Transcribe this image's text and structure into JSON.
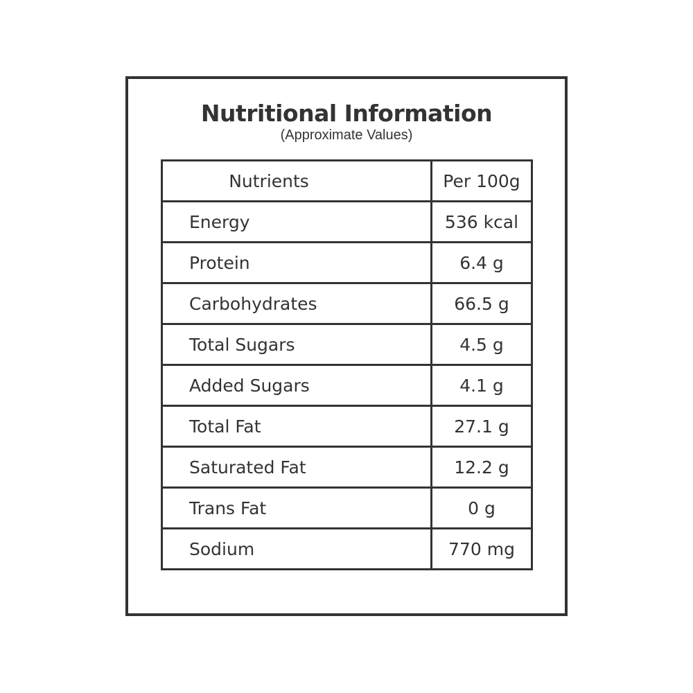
{
  "title": "Nutritional Information",
  "subtitle": "(Approximate Values)",
  "table": {
    "headers": [
      "Nutrients",
      "Per 100g"
    ],
    "rows": [
      [
        "Energy",
        "536 kcal"
      ],
      [
        "Protein",
        "6.4 g"
      ],
      [
        "Carbohydrates",
        "66.5 g"
      ],
      [
        "Total Sugars",
        "4.5 g"
      ],
      [
        "Added Sugars",
        "4.1 g"
      ],
      [
        "Total Fat",
        "27.1 g"
      ],
      [
        "Saturated Fat",
        "12.2 g"
      ],
      [
        "Trans Fat",
        "0 g"
      ],
      [
        "Sodium",
        "770 mg"
      ]
    ]
  },
  "colors": {
    "ink": "#333333",
    "background": "#ffffff"
  }
}
